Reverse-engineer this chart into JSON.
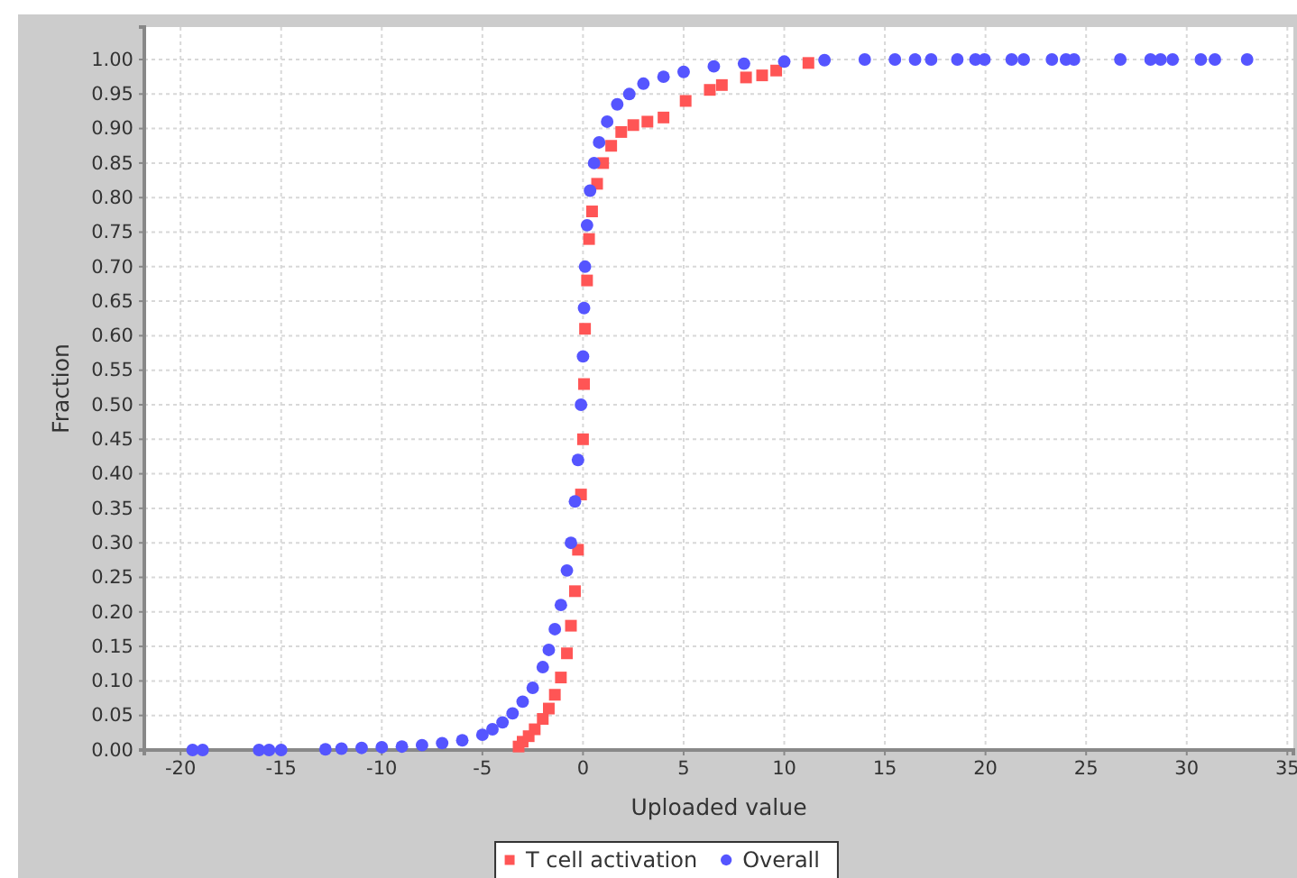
{
  "chart_data": {
    "type": "scatter",
    "xlabel": "Uploaded value",
    "ylabel": "Fraction",
    "xlim": [
      -21.8,
      35.3
    ],
    "ylim": [
      0,
      1.047
    ],
    "xticks": [
      -20,
      -15,
      -10,
      -5,
      0,
      5,
      10,
      15,
      20,
      25,
      30,
      35
    ],
    "yticks": [
      {
        "value": 0,
        "label": "0.00"
      },
      {
        "value": 0.05,
        "label": "0.05"
      },
      {
        "value": 0.1,
        "label": "0.10"
      },
      {
        "value": 0.15,
        "label": "0.15"
      },
      {
        "value": 0.2,
        "label": "0.20"
      },
      {
        "value": 0.25,
        "label": "0.25"
      },
      {
        "value": 0.3,
        "label": "0.30"
      },
      {
        "value": 0.35,
        "label": "0.35"
      },
      {
        "value": 0.4,
        "label": "0.40"
      },
      {
        "value": 0.45,
        "label": "0.45"
      },
      {
        "value": 0.5,
        "label": "0.50"
      },
      {
        "value": 0.55,
        "label": "0.55"
      },
      {
        "value": 0.6,
        "label": "0.60"
      },
      {
        "value": 0.65,
        "label": "0.65"
      },
      {
        "value": 0.7,
        "label": "0.70"
      },
      {
        "value": 0.75,
        "label": "0.75"
      },
      {
        "value": 0.8,
        "label": "0.80"
      },
      {
        "value": 0.85,
        "label": "0.85"
      },
      {
        "value": 0.9,
        "label": "0.90"
      },
      {
        "value": 0.95,
        "label": "0.95"
      },
      {
        "value": 1,
        "label": "1.00"
      }
    ],
    "grid": true,
    "legend": "bottom",
    "series": [
      {
        "name": "T cell activation",
        "color": "#ff5555",
        "marker": "square",
        "x": [
          -3.2,
          -3.0,
          -2.7,
          -2.4,
          -2.0,
          -1.7,
          -1.4,
          -1.1,
          -0.8,
          -0.6,
          -0.4,
          -0.25,
          -0.1,
          0,
          0.05,
          0.1,
          0.2,
          0.3,
          0.45,
          0.7,
          1.0,
          1.4,
          1.9,
          2.5,
          3.2,
          4.0,
          5.1,
          6.3,
          6.9,
          8.1,
          8.9,
          9.6,
          11.2
        ],
        "values": [
          0.005,
          0.012,
          0.02,
          0.03,
          0.045,
          0.06,
          0.08,
          0.105,
          0.14,
          0.18,
          0.23,
          0.29,
          0.37,
          0.45,
          0.53,
          0.61,
          0.68,
          0.74,
          0.78,
          0.82,
          0.85,
          0.875,
          0.895,
          0.905,
          0.91,
          0.916,
          0.94,
          0.956,
          0.963,
          0.974,
          0.977,
          0.984,
          0.995
        ]
      },
      {
        "name": "Overall",
        "color": "#5555ff",
        "marker": "circle",
        "x": [
          -19.4,
          -18.9,
          -16.1,
          -15.6,
          -15.0,
          -12.8,
          -12.0,
          -11.0,
          -10.0,
          -9.0,
          -8.0,
          -7.0,
          -6.0,
          -5.0,
          -4.5,
          -4.0,
          -3.5,
          -3.0,
          -2.5,
          -2.0,
          -1.7,
          -1.4,
          -1.1,
          -0.8,
          -0.6,
          -0.4,
          -0.25,
          -0.1,
          0,
          0.05,
          0.1,
          0.2,
          0.35,
          0.55,
          0.8,
          1.2,
          1.7,
          2.3,
          3.0,
          4.0,
          5.0,
          6.5,
          8.0,
          10.0,
          12.0,
          14.0,
          15.5,
          16.5,
          17.3,
          18.6,
          19.5,
          19.95,
          21.3,
          21.9,
          23.3,
          24.0,
          24.4,
          26.7,
          28.2,
          28.7,
          29.3,
          30.7,
          31.4,
          33.0
        ],
        "values": [
          0,
          0,
          0,
          0,
          0,
          0.001,
          0.002,
          0.003,
          0.004,
          0.005,
          0.007,
          0.01,
          0.014,
          0.022,
          0.03,
          0.04,
          0.053,
          0.07,
          0.09,
          0.12,
          0.145,
          0.175,
          0.21,
          0.26,
          0.3,
          0.36,
          0.42,
          0.5,
          0.57,
          0.64,
          0.7,
          0.76,
          0.81,
          0.85,
          0.88,
          0.91,
          0.935,
          0.95,
          0.965,
          0.975,
          0.982,
          0.99,
          0.994,
          0.997,
          0.999,
          1,
          1,
          1,
          1,
          1,
          1,
          1,
          1,
          1,
          1,
          1,
          1,
          1,
          1,
          1,
          1,
          1,
          1,
          1
        ]
      }
    ]
  }
}
